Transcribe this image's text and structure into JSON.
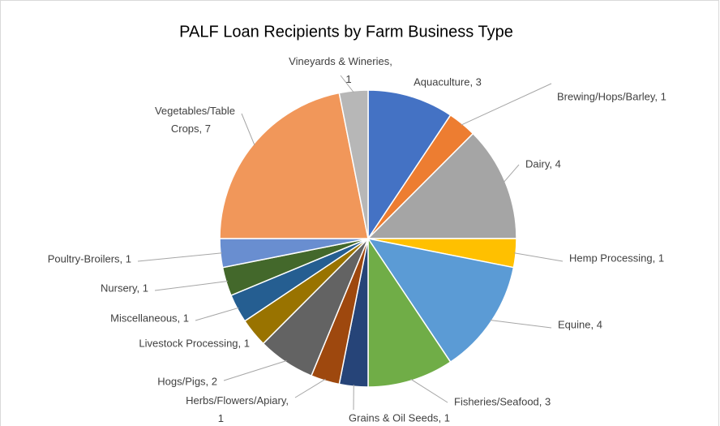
{
  "chart_data": {
    "type": "pie",
    "title": "PALF Loan Recipients by Farm Business Type",
    "values": [
      3,
      1,
      4,
      1,
      4,
      3,
      1,
      1,
      2,
      1,
      1,
      1,
      1,
      7,
      1
    ],
    "value_labels": [
      "Aquaculture, 3",
      "Brewing/Hops/Barley, 1",
      "Dairy, 4",
      "Hemp Processing, 1",
      "Equine, 4",
      "Fisheries/Seafood, 3",
      "Grains & Oil Seeds, 1",
      "Herbs/Flowers/Apiary, 1",
      "Hogs/Pigs, 2",
      "Livestock Processing, 1",
      "Miscellaneous, 1",
      "Nursery, 1",
      "Poultry-Broilers, 1",
      "Vegetables/Table Crops, 7",
      "Vineyards & Wineries, 1"
    ],
    "colors": [
      "#4472c4",
      "#ed7d31",
      "#a5a5a5",
      "#ffc000",
      "#5b9bd5",
      "#70ad47",
      "#264478",
      "#9e480e",
      "#636363",
      "#997300",
      "#255e91",
      "#43682b",
      "#698ed0",
      "#f1975a",
      "#b7b7b7"
    ]
  }
}
